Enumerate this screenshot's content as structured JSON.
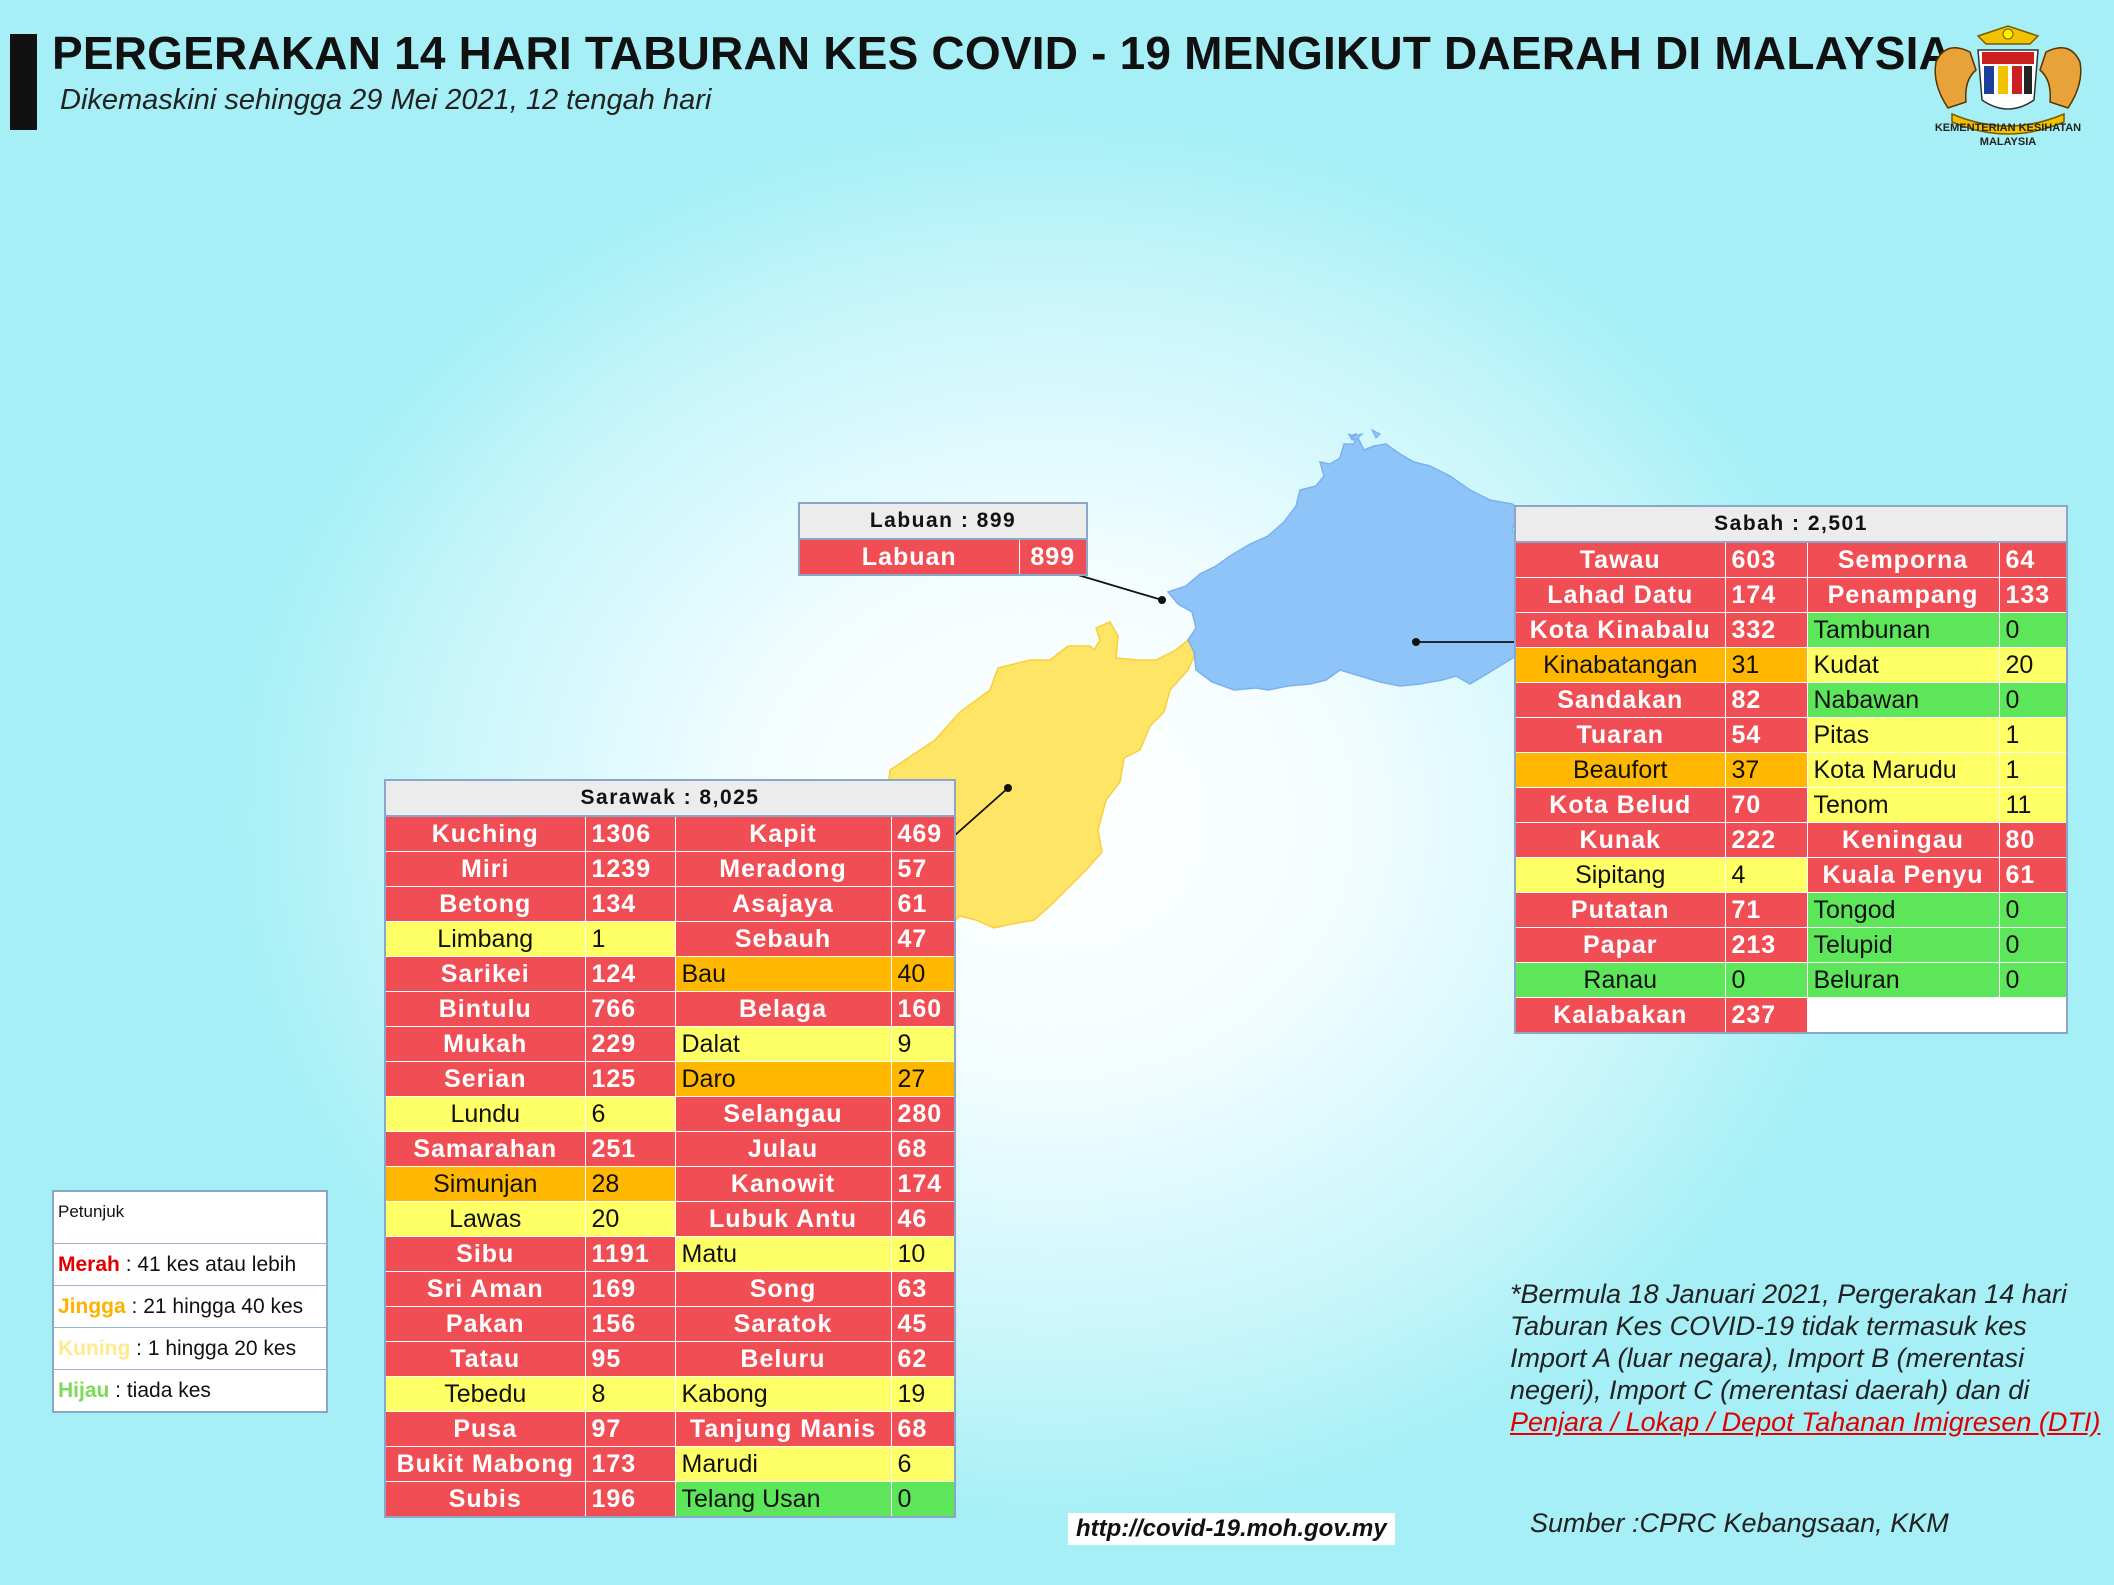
{
  "header": {
    "title": "PERGERAKAN 14 HARI TABURAN KES COVID - 19 MENGIKUT DAERAH DI MALAYSIA",
    "subtitle": "Dikemaskini sehingga 29 Mei 2021, 12 tengah hari"
  },
  "logo": {
    "line1": "KEMENTERIAN KESIHATAN",
    "line2": "MALAYSIA"
  },
  "colors": {
    "merah": "#f04e54",
    "jingga": "#ffb700",
    "kuning": "#ffff66",
    "hijau": "#5ee65a",
    "sabah_map": "#8ec4f8",
    "sarawak_map": "#ffe566"
  },
  "labuan": {
    "header": "Labuan : 899",
    "rows": [
      {
        "name": "Labuan",
        "value": "899"
      }
    ]
  },
  "sabah": {
    "header": "Sabah : 2,501",
    "rows": [
      {
        "n1": "Tawau",
        "v1": "603",
        "c1": "r",
        "n2": "Semporna",
        "v2": "64",
        "c2": "r"
      },
      {
        "n1": "Lahad Datu",
        "v1": "174",
        "c1": "r",
        "n2": "Penampang",
        "v2": "133",
        "c2": "r"
      },
      {
        "n1": "Kota Kinabalu",
        "v1": "332",
        "c1": "r",
        "n2": "Tambunan",
        "v2": "0",
        "c2": "g"
      },
      {
        "n1": "Kinabatangan",
        "v1": "31",
        "c1": "o",
        "n2": "Kudat",
        "v2": "20",
        "c2": "y"
      },
      {
        "n1": "Sandakan",
        "v1": "82",
        "c1": "r",
        "n2": "Nabawan",
        "v2": "0",
        "c2": "g"
      },
      {
        "n1": "Tuaran",
        "v1": "54",
        "c1": "r",
        "n2": "Pitas",
        "v2": "1",
        "c2": "y"
      },
      {
        "n1": "Beaufort",
        "v1": "37",
        "c1": "o",
        "n2": "Kota Marudu",
        "v2": "1",
        "c2": "y"
      },
      {
        "n1": "Kota Belud",
        "v1": "70",
        "c1": "r",
        "n2": "Tenom",
        "v2": "11",
        "c2": "y"
      },
      {
        "n1": "Kunak",
        "v1": "222",
        "c1": "r",
        "n2": "Keningau",
        "v2": "80",
        "c2": "r"
      },
      {
        "n1": "Sipitang",
        "v1": "4",
        "c1": "y",
        "n2": "Kuala Penyu",
        "v2": "61",
        "c2": "r"
      },
      {
        "n1": "Putatan",
        "v1": "71",
        "c1": "r",
        "n2": "Tongod",
        "v2": "0",
        "c2": "g"
      },
      {
        "n1": "Papar",
        "v1": "213",
        "c1": "r",
        "n2": "Telupid",
        "v2": "0",
        "c2": "g"
      },
      {
        "n1": "Ranau",
        "v1": "0",
        "c1": "g",
        "n2": "Beluran",
        "v2": "0",
        "c2": "g"
      },
      {
        "n1": "Kalabakan",
        "v1": "237",
        "c1": "r",
        "n2": "",
        "v2": "",
        "c2": "e"
      }
    ]
  },
  "sarawak": {
    "header": "Sarawak : 8,025",
    "rows": [
      {
        "n1": "Kuching",
        "v1": "1306",
        "c1": "r",
        "n2": "Kapit",
        "v2": "469",
        "c2": "r"
      },
      {
        "n1": "Miri",
        "v1": "1239",
        "c1": "r",
        "n2": "Meradong",
        "v2": "57",
        "c2": "r"
      },
      {
        "n1": "Betong",
        "v1": "134",
        "c1": "r",
        "n2": "Asajaya",
        "v2": "61",
        "c2": "r"
      },
      {
        "n1": "Limbang",
        "v1": "1",
        "c1": "y",
        "n2": "Sebauh",
        "v2": "47",
        "c2": "r"
      },
      {
        "n1": "Sarikei",
        "v1": "124",
        "c1": "r",
        "n2": "Bau",
        "v2": "40",
        "c2": "o"
      },
      {
        "n1": "Bintulu",
        "v1": "766",
        "c1": "r",
        "n2": "Belaga",
        "v2": "160",
        "c2": "r"
      },
      {
        "n1": "Mukah",
        "v1": "229",
        "c1": "r",
        "n2": "Dalat",
        "v2": "9",
        "c2": "y"
      },
      {
        "n1": "Serian",
        "v1": "125",
        "c1": "r",
        "n2": "Daro",
        "v2": "27",
        "c2": "o"
      },
      {
        "n1": "Lundu",
        "v1": "6",
        "c1": "y",
        "n2": "Selangau",
        "v2": "280",
        "c2": "r"
      },
      {
        "n1": "Samarahan",
        "v1": "251",
        "c1": "r",
        "n2": "Julau",
        "v2": "68",
        "c2": "r"
      },
      {
        "n1": "Simunjan",
        "v1": "28",
        "c1": "o",
        "n2": "Kanowit",
        "v2": "174",
        "c2": "r"
      },
      {
        "n1": "Lawas",
        "v1": "20",
        "c1": "y",
        "n2": "Lubuk Antu",
        "v2": "46",
        "c2": "r"
      },
      {
        "n1": "Sibu",
        "v1": "1191",
        "c1": "r",
        "n2": "Matu",
        "v2": "10",
        "c2": "y"
      },
      {
        "n1": "Sri Aman",
        "v1": "169",
        "c1": "r",
        "n2": "Song",
        "v2": "63",
        "c2": "r"
      },
      {
        "n1": "Pakan",
        "v1": "156",
        "c1": "r",
        "n2": "Saratok",
        "v2": "45",
        "c2": "r"
      },
      {
        "n1": "Tatau",
        "v1": "95",
        "c1": "r",
        "n2": "Beluru",
        "v2": "62",
        "c2": "r"
      },
      {
        "n1": "Tebedu",
        "v1": "8",
        "c1": "y",
        "n2": "Kabong",
        "v2": "19",
        "c2": "y"
      },
      {
        "n1": "Pusa",
        "v1": "97",
        "c1": "r",
        "n2": "Tanjung Manis",
        "v2": "68",
        "c2": "r"
      },
      {
        "n1": "Bukit Mabong",
        "v1": "173",
        "c1": "r",
        "n2": "Marudi",
        "v2": "6",
        "c2": "y"
      },
      {
        "n1": "Subis",
        "v1": "196",
        "c1": "r",
        "n2": "Telang Usan",
        "v2": "0",
        "c2": "g"
      }
    ]
  },
  "legend": {
    "title": "Petunjuk",
    "items": [
      {
        "key": "Merah",
        "text": " : 41 kes atau lebih",
        "color": "#e00000"
      },
      {
        "key": "Jingga",
        "text": " : 21 hingga 40 kes",
        "color": "#ffb000"
      },
      {
        "key": "Kuning",
        "text": " : 1 hingga 20 kes",
        "color": "#ffe98a"
      },
      {
        "key": "Hijau",
        "text": " : tiada kes",
        "color": "#7ed957"
      }
    ]
  },
  "note": {
    "text": "*Bermula 18 Januari 2021, Pergerakan 14 hari Taburan Kes COVID-19 tidak termasuk kes Import A (luar negara), Import B (merentasi negeri), Import C (merentasi daerah) dan di ",
    "link": "Penjara / Lokap / Depot Tahanan Imigresen (DTI)"
  },
  "url": "http://covid-19.moh.gov.my",
  "source": "Sumber :CPRC Kebangsaan,  KKM"
}
